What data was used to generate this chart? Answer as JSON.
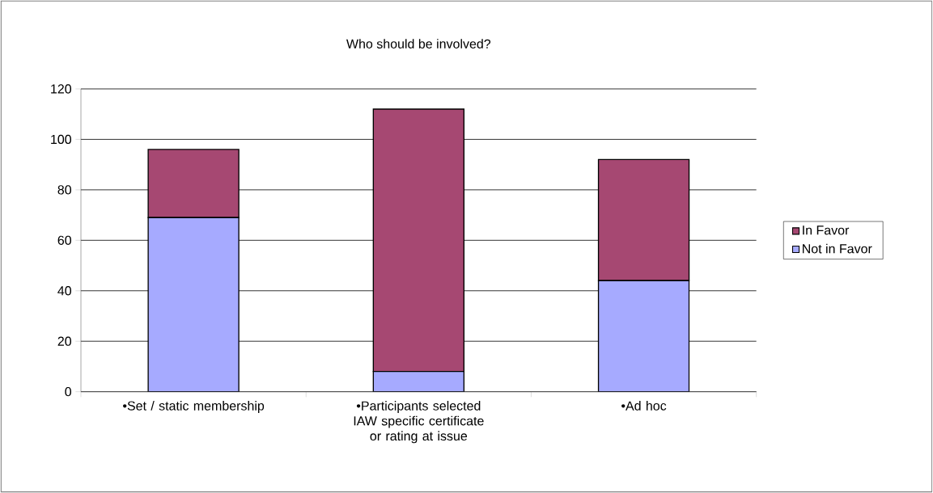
{
  "chart_data": {
    "type": "bar",
    "stacked": true,
    "title": "Who should be involved?",
    "categories": [
      "•Set / static membership",
      "•Participants selected IAW specific certificate or rating at issue",
      "•Ad hoc"
    ],
    "series": [
      {
        "name": "Not in Favor",
        "color": "#a6aaff",
        "values": [
          69,
          8,
          44
        ]
      },
      {
        "name": "In Favor",
        "color": "#a64872",
        "values": [
          27,
          104,
          48
        ]
      }
    ],
    "ylim": [
      0,
      120
    ],
    "yticks": [
      0,
      20,
      40,
      60,
      80,
      100,
      120
    ],
    "grid": "y",
    "legend": "right"
  }
}
